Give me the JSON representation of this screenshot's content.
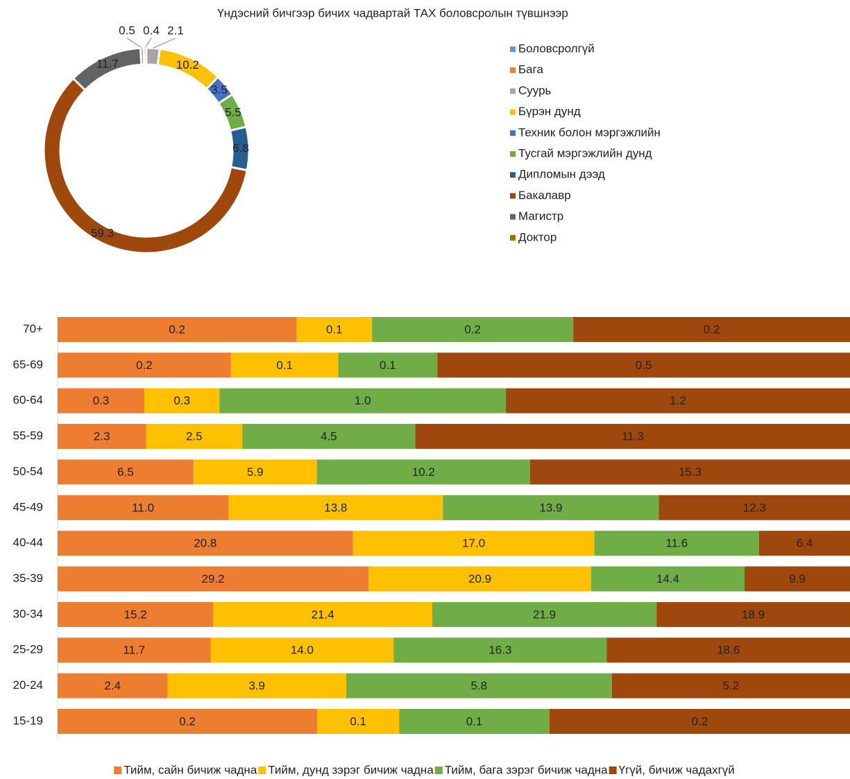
{
  "chart_data": [
    {
      "type": "donut",
      "title": "Үндэсний бичгээр бичих чадвартай ТАХ боловсролын түвшнээр",
      "categories": [
        "Боловсролгүй",
        "Бага",
        "Суурь",
        "Бүрэн дунд",
        "Техник болон мэргэжлийн",
        "Тусгай мэргэжлийн дунд",
        "Дипломын дээд",
        "Бакалавр",
        "Магистр",
        "Доктор"
      ],
      "values": [
        0.5,
        0.4,
        2.1,
        10.2,
        3.5,
        5.5,
        6.8,
        59.3,
        11.7,
        0
      ],
      "colors": [
        "#5b9bd5",
        "#ed7d31",
        "#a5a5a5",
        "#ffc000",
        "#4472c4",
        "#70ad47",
        "#255e91",
        "#9e480e",
        "#636363",
        "#997300"
      ],
      "legend": "right"
    },
    {
      "type": "stacked-barh",
      "categories": [
        "70+",
        "65-69",
        "60-64",
        "55-59",
        "50-54",
        "45-49",
        "40-44",
        "35-39",
        "30-34",
        "25-29",
        "20-24",
        "15-19"
      ],
      "series": [
        {
          "name": "Тийм, сайн бичиж чадна",
          "color": "#ed7d31",
          "values": [
            0.19,
            0.21,
            0.3,
            2.3,
            6.5,
            11.0,
            20.8,
            29.2,
            15.2,
            11.7,
            2.4,
            0.19
          ],
          "value_labels": [
            "0.2",
            "0.2",
            "0.3",
            "2.3",
            "6.5",
            "11.0",
            "20.8",
            "29.2",
            "15.2",
            "11.7",
            "2.4",
            "0.2"
          ]
        },
        {
          "name": "Тийм, дунд зэрэг бичиж чадна",
          "color": "#ffc000",
          "values": [
            0.06,
            0.13,
            0.26,
            2.5,
            5.9,
            13.8,
            17.0,
            20.9,
            21.4,
            14.0,
            3.9,
            0.06
          ],
          "value_labels": [
            "0.1",
            "0.1",
            "0.3",
            "2.5",
            "5.9",
            "13.8",
            "17.0",
            "20.9",
            "21.4",
            "14.0",
            "3.9",
            "0.1"
          ]
        },
        {
          "name": "Тийм, бага зэрэг бичиж чадна",
          "color": "#70ad47",
          "values": [
            0.16,
            0.12,
            0.99,
            4.5,
            10.2,
            13.9,
            11.6,
            14.4,
            21.9,
            16.3,
            5.8,
            0.11
          ],
          "value_labels": [
            "0.2",
            "0.1",
            "1.0",
            "4.5",
            "10.2",
            "13.9",
            "11.6",
            "14.4",
            "21.9",
            "16.3",
            "5.8",
            "0.1"
          ]
        },
        {
          "name": "Үгүй, бичиж чадахгүй",
          "color": "#9e480e",
          "values": [
            0.22,
            0.5,
            1.19,
            11.3,
            15.3,
            12.3,
            6.4,
            9.9,
            18.9,
            18.6,
            5.2,
            0.22
          ],
          "value_labels": [
            "0.2",
            "0.5",
            "1.2",
            "11.3",
            "15.3",
            "12.3",
            "6.4",
            "9.9",
            "18.9",
            "18.6",
            "5.2",
            "0.2"
          ]
        }
      ],
      "legend": "bottom"
    }
  ]
}
